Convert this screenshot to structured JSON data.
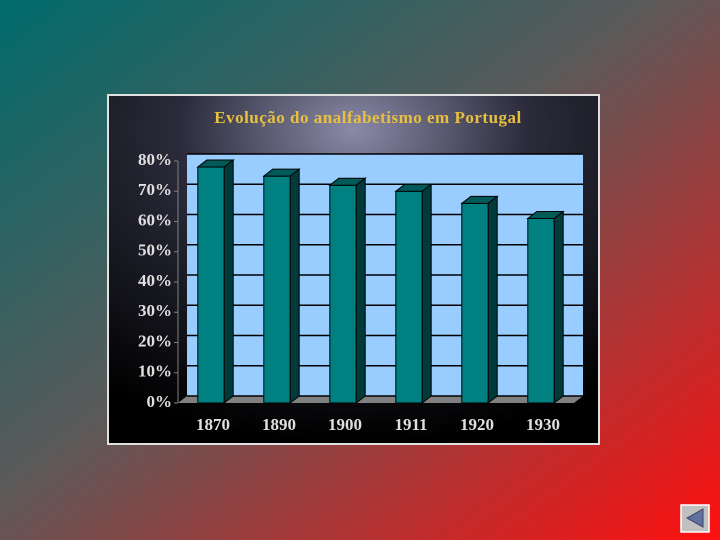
{
  "chart_data": {
    "type": "bar",
    "title": "Evolução do analfabetismo em Portugal",
    "categories": [
      "1870",
      "1890",
      "1900",
      "1911",
      "1920",
      "1930"
    ],
    "values": [
      78,
      75,
      72,
      70,
      66,
      61
    ],
    "color": "#008080",
    "ylim": [
      0,
      80
    ],
    "yticks": [
      {
        "value": 0,
        "label": "0%"
      },
      {
        "value": 10,
        "label": "10%"
      },
      {
        "value": 20,
        "label": "20%"
      },
      {
        "value": 30,
        "label": "30%"
      },
      {
        "value": 40,
        "label": "40%"
      },
      {
        "value": 50,
        "label": "50%"
      },
      {
        "value": 60,
        "label": "60%"
      },
      {
        "value": 70,
        "label": "70%"
      },
      {
        "value": 80,
        "label": "80%"
      }
    ],
    "grid": true
  }
}
